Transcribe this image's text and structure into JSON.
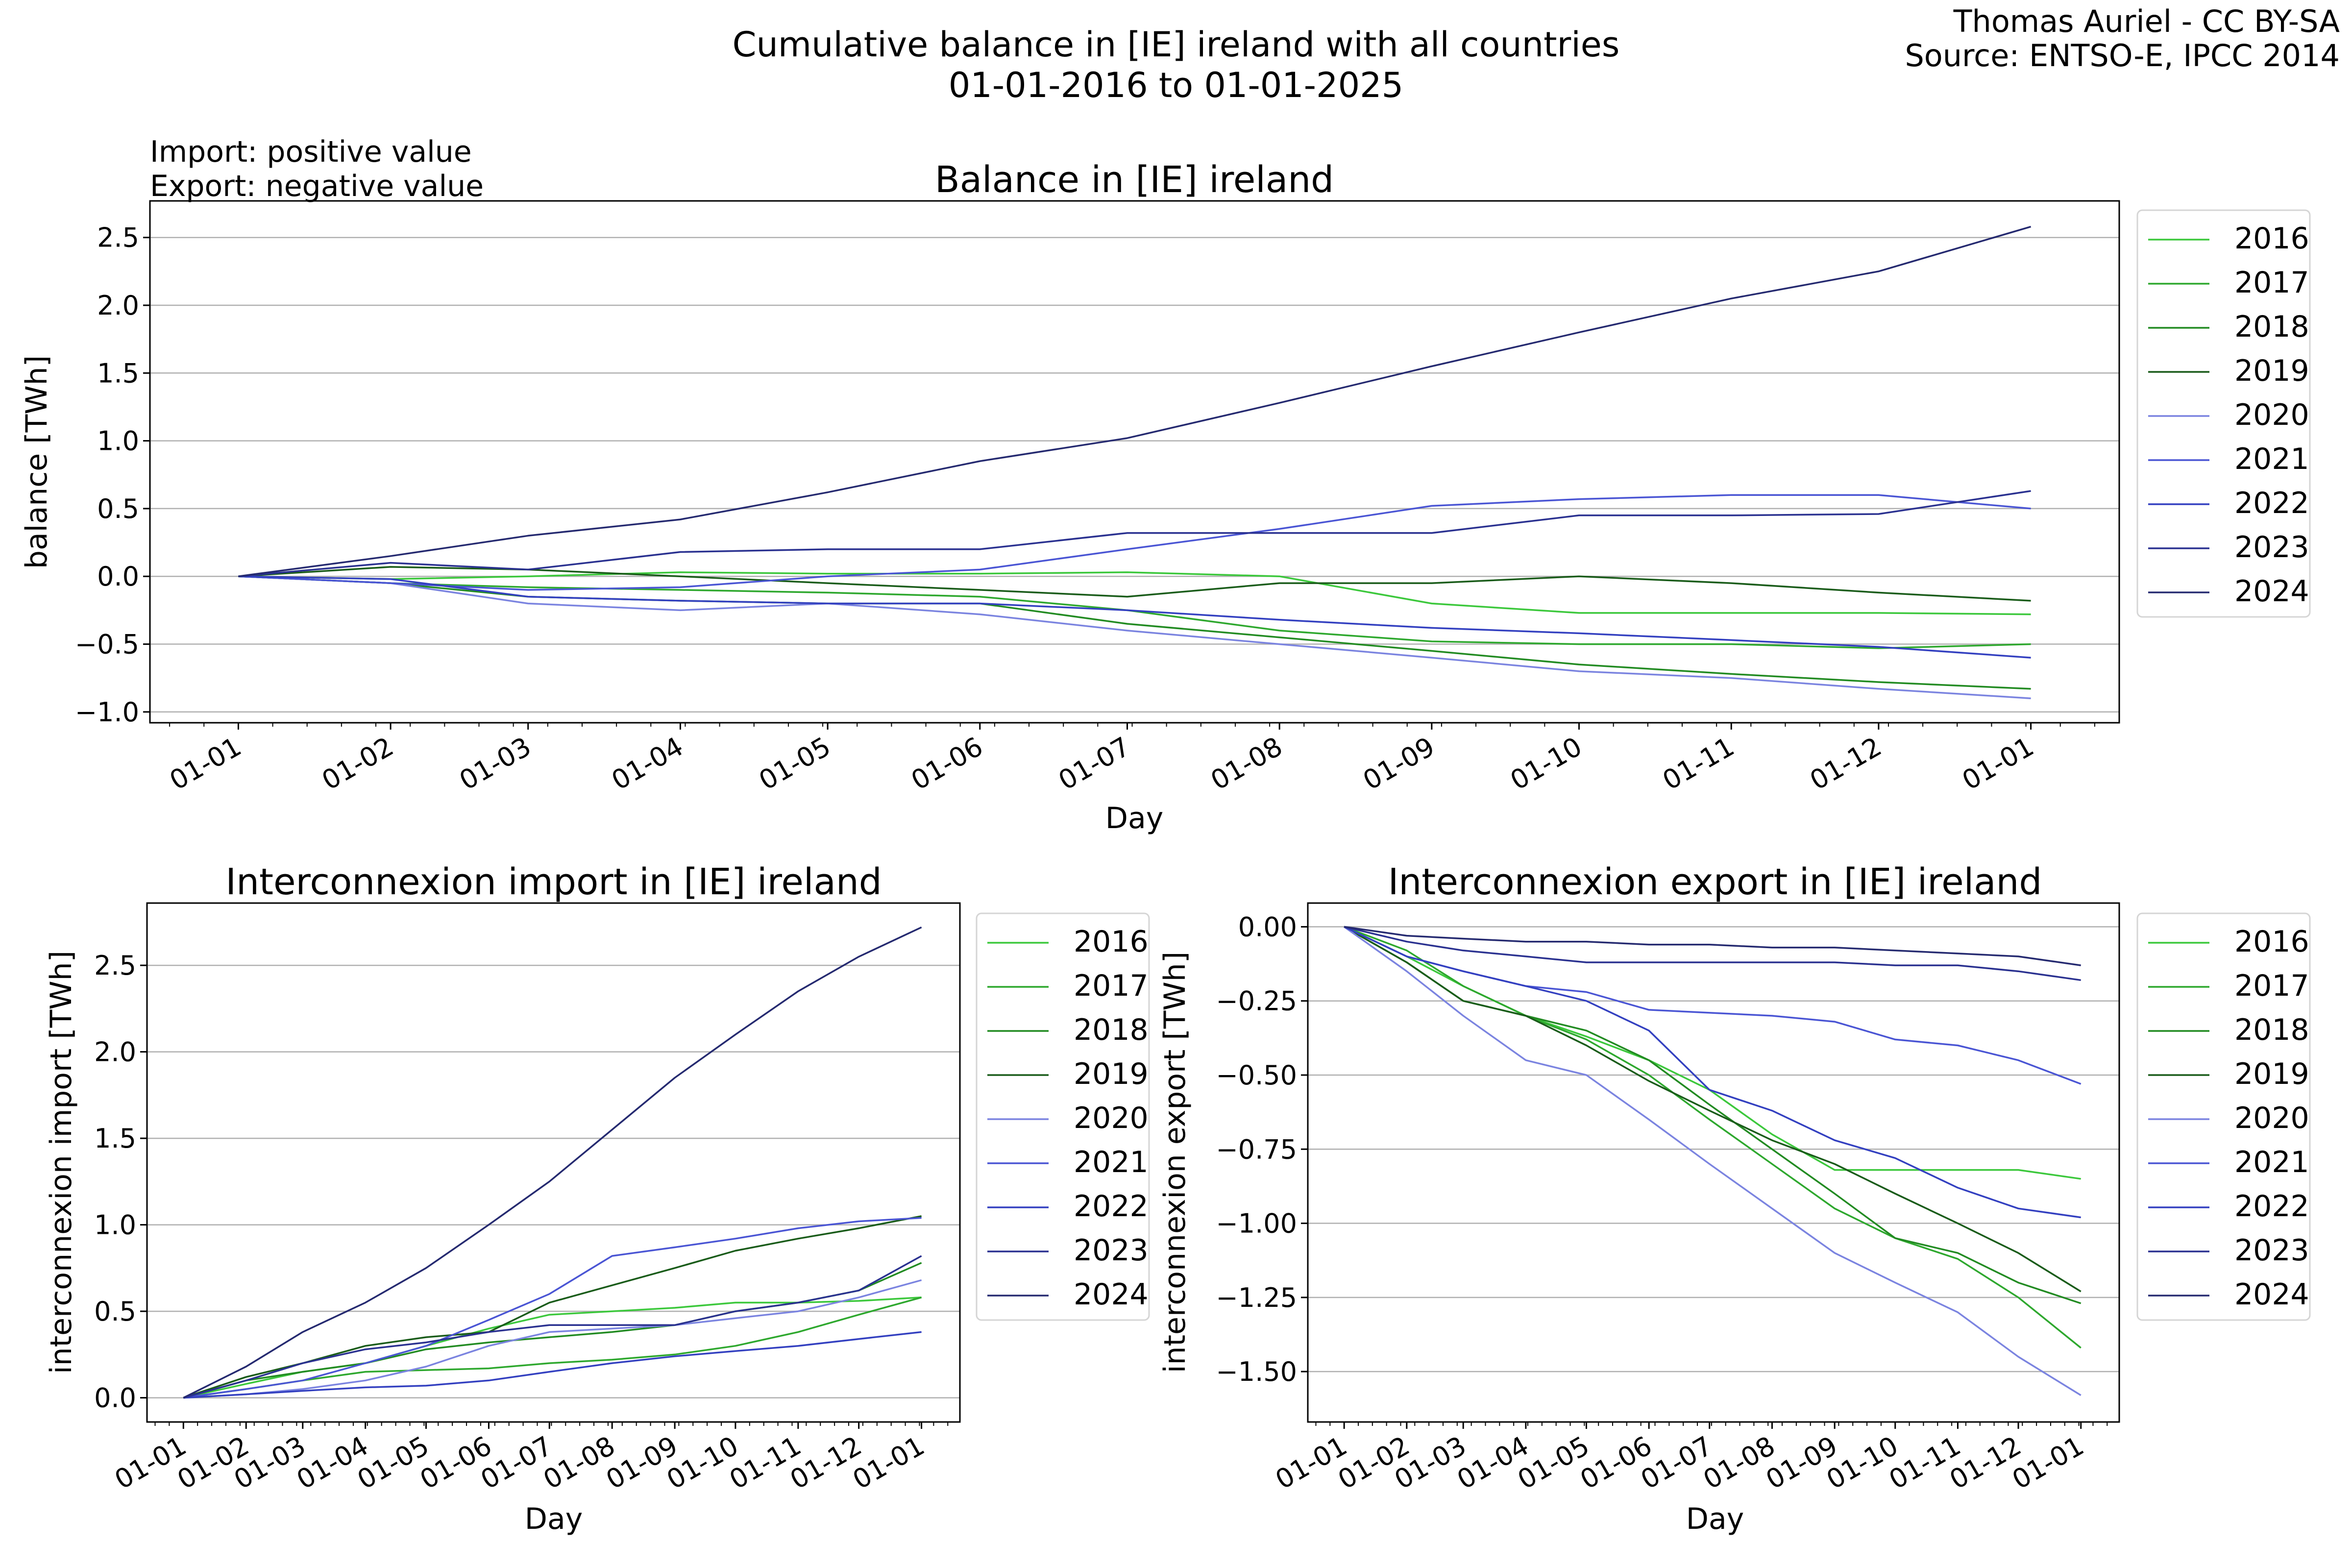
{
  "header": {
    "title_line1": "Cumulative balance in [IE] ireland with all countries",
    "title_line2": "01-01-2016 to 01-01-2025",
    "credit_line1": "Thomas Auriel - CC BY-SA",
    "credit_line2": "Source: ENTSO-E, IPCC 2014",
    "note_line1": "Import: positive value",
    "note_line2": "Export: negative value"
  },
  "colors": {
    "2016": "#3cc83c",
    "2017": "#2ea82e",
    "2018": "#228b22",
    "2019": "#1a5c1a",
    "2020": "#7b84e0",
    "2021": "#4a55d4",
    "2022": "#3340c0",
    "2023": "#2a3190",
    "2024": "#252a70"
  },
  "chart_data": [
    {
      "id": "balance",
      "type": "line",
      "title": "Balance in [IE] ireland",
      "xlabel": "Day",
      "ylabel": "balance [TWh]",
      "ylim": [
        -1.08,
        2.77
      ],
      "xlim": [
        -18,
        383
      ],
      "yticks": [
        -1.0,
        -0.5,
        0.0,
        0.5,
        1.0,
        1.5,
        2.0,
        2.5
      ],
      "ytick_labels": [
        "−1.0",
        "−0.5",
        "0.0",
        "0.5",
        "1.0",
        "1.5",
        "2.0",
        "2.5"
      ],
      "xticks": [
        0,
        31,
        59,
        90,
        120,
        151,
        181,
        212,
        243,
        273,
        304,
        334,
        365
      ],
      "xtick_labels": [
        "01-01",
        "01-02",
        "01-03",
        "01-04",
        "01-05",
        "01-06",
        "01-07",
        "01-08",
        "01-09",
        "01-10",
        "01-11",
        "01-12",
        "01-01"
      ],
      "grid": "y",
      "legend": "outside-right",
      "series": [
        {
          "name": "2016",
          "values": [
            0,
            -0.02,
            0.0,
            0.03,
            0.02,
            0.02,
            0.03,
            0.0,
            -0.2,
            -0.27,
            -0.27,
            -0.27,
            -0.28
          ]
        },
        {
          "name": "2017",
          "values": [
            0,
            -0.05,
            -0.08,
            -0.1,
            -0.12,
            -0.15,
            -0.25,
            -0.4,
            -0.48,
            -0.5,
            -0.5,
            -0.53,
            -0.5
          ]
        },
        {
          "name": "2018",
          "values": [
            0,
            -0.05,
            -0.15,
            -0.18,
            -0.2,
            -0.2,
            -0.35,
            -0.45,
            -0.55,
            -0.65,
            -0.72,
            -0.78,
            -0.83
          ]
        },
        {
          "name": "2019",
          "values": [
            0,
            0.07,
            0.05,
            0.0,
            -0.05,
            -0.1,
            -0.15,
            -0.05,
            -0.05,
            0.0,
            -0.05,
            -0.12,
            -0.18
          ]
        },
        {
          "name": "2020",
          "values": [
            0,
            -0.05,
            -0.2,
            -0.25,
            -0.2,
            -0.28,
            -0.4,
            -0.5,
            -0.6,
            -0.7,
            -0.75,
            -0.83,
            -0.9
          ]
        },
        {
          "name": "2021",
          "values": [
            0,
            -0.05,
            -0.1,
            -0.08,
            0.0,
            0.05,
            0.2,
            0.35,
            0.52,
            0.57,
            0.6,
            0.6,
            0.5
          ]
        },
        {
          "name": "2022",
          "values": [
            0,
            -0.02,
            -0.15,
            -0.18,
            -0.2,
            -0.2,
            -0.25,
            -0.32,
            -0.38,
            -0.42,
            -0.47,
            -0.52,
            -0.6
          ]
        },
        {
          "name": "2023",
          "values": [
            0,
            0.1,
            0.05,
            0.18,
            0.2,
            0.2,
            0.32,
            0.32,
            0.32,
            0.45,
            0.45,
            0.46,
            0.63
          ]
        },
        {
          "name": "2024",
          "values": [
            0,
            0.15,
            0.3,
            0.42,
            0.62,
            0.85,
            1.02,
            1.28,
            1.55,
            1.8,
            2.05,
            2.25,
            2.58
          ]
        }
      ]
    },
    {
      "id": "import",
      "type": "line",
      "title": "Interconnexion import in [IE] ireland",
      "xlabel": "Day",
      "ylabel": "interconnexion import [TWh]",
      "ylim": [
        -0.14,
        2.86
      ],
      "xlim": [
        -18,
        384
      ],
      "yticks": [
        0.0,
        0.5,
        1.0,
        1.5,
        2.0,
        2.5
      ],
      "ytick_labels": [
        "0.0",
        "0.5",
        "1.0",
        "1.5",
        "2.0",
        "2.5"
      ],
      "xticks": [
        0,
        31,
        59,
        90,
        120,
        151,
        181,
        212,
        243,
        273,
        304,
        334,
        365
      ],
      "xtick_labels": [
        "01-01",
        "01-02",
        "01-03",
        "01-04",
        "01-05",
        "01-06",
        "01-07",
        "01-08",
        "01-09",
        "01-10",
        "01-11",
        "01-12",
        "01-01"
      ],
      "grid": "y",
      "legend": "outside-right",
      "series": [
        {
          "name": "2016",
          "values": [
            0,
            0.08,
            0.15,
            0.2,
            0.3,
            0.4,
            0.48,
            0.5,
            0.52,
            0.55,
            0.55,
            0.56,
            0.58
          ]
        },
        {
          "name": "2017",
          "values": [
            0,
            0.05,
            0.1,
            0.15,
            0.16,
            0.17,
            0.2,
            0.22,
            0.25,
            0.3,
            0.38,
            0.48,
            0.58
          ]
        },
        {
          "name": "2018",
          "values": [
            0,
            0.1,
            0.15,
            0.2,
            0.28,
            0.32,
            0.35,
            0.38,
            0.42,
            0.5,
            0.55,
            0.62,
            0.78
          ]
        },
        {
          "name": "2019",
          "values": [
            0,
            0.12,
            0.2,
            0.3,
            0.35,
            0.38,
            0.55,
            0.65,
            0.75,
            0.85,
            0.92,
            0.98,
            1.05
          ]
        },
        {
          "name": "2020",
          "values": [
            0,
            0.02,
            0.05,
            0.1,
            0.18,
            0.3,
            0.38,
            0.4,
            0.42,
            0.46,
            0.5,
            0.58,
            0.68
          ]
        },
        {
          "name": "2021",
          "values": [
            0,
            0.05,
            0.1,
            0.2,
            0.3,
            0.45,
            0.6,
            0.82,
            0.87,
            0.92,
            0.98,
            1.02,
            1.04
          ]
        },
        {
          "name": "2022",
          "values": [
            0,
            0.02,
            0.04,
            0.06,
            0.07,
            0.1,
            0.15,
            0.2,
            0.24,
            0.27,
            0.3,
            0.34,
            0.38
          ]
        },
        {
          "name": "2023",
          "values": [
            0,
            0.1,
            0.2,
            0.28,
            0.32,
            0.38,
            0.42,
            0.42,
            0.42,
            0.5,
            0.55,
            0.62,
            0.82
          ]
        },
        {
          "name": "2024",
          "values": [
            0,
            0.18,
            0.38,
            0.55,
            0.75,
            1.0,
            1.25,
            1.55,
            1.85,
            2.1,
            2.35,
            2.55,
            2.72
          ]
        }
      ]
    },
    {
      "id": "export",
      "type": "line",
      "title": "Interconnexion export in [IE] ireland",
      "xlabel": "Day",
      "ylabel": "interconnexion export [TWh]",
      "ylim": [
        -1.67,
        0.08
      ],
      "xlim": [
        -18,
        384
      ],
      "yticks": [
        -1.5,
        -1.25,
        -1.0,
        -0.75,
        -0.5,
        -0.25,
        0.0
      ],
      "ytick_labels": [
        "−1.50",
        "−1.25",
        "−1.00",
        "−0.75",
        "−0.50",
        "−0.25",
        "0.00"
      ],
      "xticks": [
        0,
        31,
        59,
        90,
        120,
        151,
        181,
        212,
        243,
        273,
        304,
        334,
        365
      ],
      "xtick_labels": [
        "01-01",
        "01-02",
        "01-03",
        "01-04",
        "01-05",
        "01-06",
        "01-07",
        "01-08",
        "01-09",
        "01-10",
        "01-11",
        "01-12",
        "01-01"
      ],
      "grid": "y",
      "legend": "outside-right",
      "series": [
        {
          "name": "2016",
          "values": [
            0,
            -0.1,
            -0.2,
            -0.3,
            -0.37,
            -0.45,
            -0.55,
            -0.7,
            -0.82,
            -0.82,
            -0.82,
            -0.82,
            -0.85
          ]
        },
        {
          "name": "2017",
          "values": [
            0,
            -0.08,
            -0.2,
            -0.3,
            -0.38,
            -0.5,
            -0.65,
            -0.8,
            -0.95,
            -1.05,
            -1.12,
            -1.25,
            -1.42
          ]
        },
        {
          "name": "2018",
          "values": [
            0,
            -0.12,
            -0.25,
            -0.3,
            -0.35,
            -0.45,
            -0.6,
            -0.75,
            -0.9,
            -1.05,
            -1.1,
            -1.2,
            -1.27
          ]
        },
        {
          "name": "2019",
          "values": [
            0,
            -0.12,
            -0.25,
            -0.3,
            -0.4,
            -0.52,
            -0.62,
            -0.72,
            -0.8,
            -0.9,
            -1.0,
            -1.1,
            -1.23
          ]
        },
        {
          "name": "2020",
          "values": [
            0,
            -0.15,
            -0.3,
            -0.45,
            -0.5,
            -0.65,
            -0.8,
            -0.95,
            -1.1,
            -1.2,
            -1.3,
            -1.45,
            -1.58
          ]
        },
        {
          "name": "2021",
          "values": [
            0,
            -0.1,
            -0.15,
            -0.2,
            -0.22,
            -0.28,
            -0.29,
            -0.3,
            -0.32,
            -0.38,
            -0.4,
            -0.45,
            -0.53
          ]
        },
        {
          "name": "2022",
          "values": [
            0,
            -0.1,
            -0.15,
            -0.2,
            -0.25,
            -0.35,
            -0.55,
            -0.62,
            -0.72,
            -0.78,
            -0.88,
            -0.95,
            -0.98
          ]
        },
        {
          "name": "2023",
          "values": [
            0,
            -0.05,
            -0.08,
            -0.1,
            -0.12,
            -0.12,
            -0.12,
            -0.12,
            -0.12,
            -0.13,
            -0.13,
            -0.15,
            -0.18
          ]
        },
        {
          "name": "2024",
          "values": [
            0,
            -0.03,
            -0.04,
            -0.05,
            -0.05,
            -0.06,
            -0.06,
            -0.07,
            -0.07,
            -0.08,
            -0.09,
            -0.1,
            -0.13
          ]
        }
      ]
    }
  ]
}
